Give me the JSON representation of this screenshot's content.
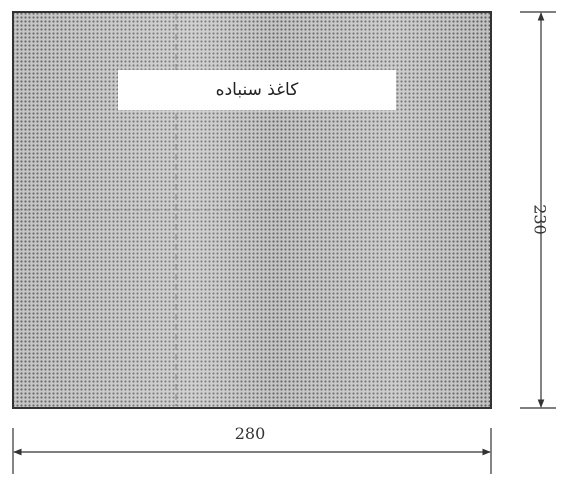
{
  "figure": {
    "sheet_label": "کاغذ سنباده",
    "width_dimension": "280",
    "height_dimension": "230"
  },
  "colors": {
    "sheet_fill": "#b9b9b9",
    "sheet_dot": "#5e5e5e",
    "line": "#333333"
  }
}
